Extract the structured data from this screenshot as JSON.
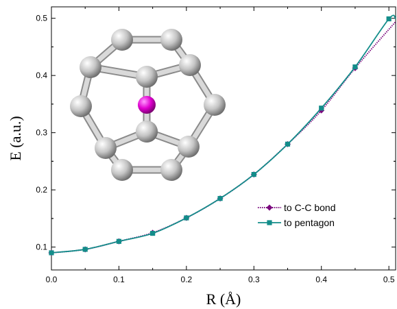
{
  "chart_data": {
    "type": "line",
    "xlabel": "R (Å)",
    "ylabel": "E (a.u.)",
    "xlim": [
      0,
      0.51
    ],
    "ylim": [
      0.06,
      0.52
    ],
    "x_ticks": [
      "0.0",
      "0.1",
      "0.2",
      "0.3",
      "0.4",
      "0.5"
    ],
    "y_ticks": [
      "0.1",
      "0.2",
      "0.3",
      "0.4",
      "0.5"
    ],
    "series": [
      {
        "name": "to C-C bond",
        "color": "#7b0a7e",
        "line_style": "dotted",
        "marker": "diamond",
        "x": [
          0.0,
          0.05,
          0.1,
          0.15,
          0.2,
          0.25,
          0.3,
          0.35,
          0.4,
          0.45
        ],
        "y": [
          0.09,
          0.096,
          0.11,
          0.125,
          0.151,
          0.185,
          0.227,
          0.28,
          0.339,
          0.413
        ],
        "curve_end": [
          0.51,
          0.494
        ]
      },
      {
        "name": "to pentagon",
        "color": "#138d8a",
        "line_style": "solid",
        "marker": "square",
        "x": [
          0.0,
          0.05,
          0.1,
          0.15,
          0.2,
          0.25,
          0.3,
          0.35,
          0.4,
          0.45,
          0.5
        ],
        "y": [
          0.09,
          0.096,
          0.11,
          0.124,
          0.151,
          0.185,
          0.227,
          0.28,
          0.343,
          0.415,
          0.499
        ],
        "curve_end": [
          0.51,
          0.499
        ]
      }
    ],
    "legend_position": "bottom-right",
    "inset": {
      "description": "ball-and-stick molecule",
      "atom_color": "#c8c8c8",
      "center_atom_color": "#e000d0"
    }
  }
}
